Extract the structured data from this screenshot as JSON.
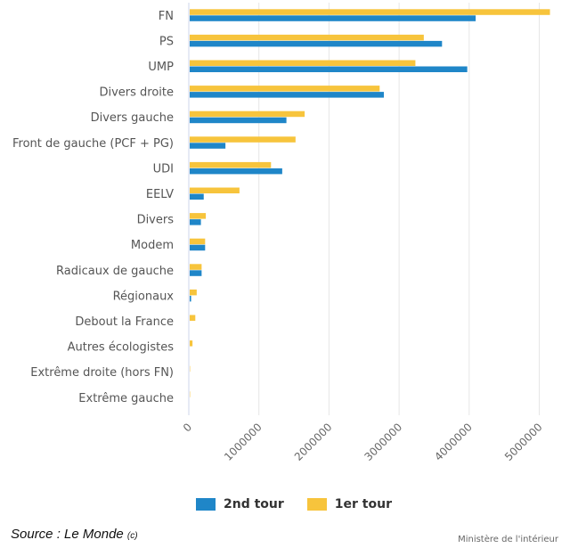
{
  "chart_data": {
    "type": "bar",
    "orientation": "horizontal",
    "categories": [
      "FN",
      "PS",
      "UMP",
      "Divers droite",
      "Divers gauche",
      "Front de gauche (PCF + PG)",
      "UDI",
      "EELV",
      "Divers",
      "Modem",
      "Radicaux de gauche",
      "Régionaux",
      "Debout la France",
      "Autres écologistes",
      "Extrême droite (hors FN)",
      "Extrême gauche"
    ],
    "series": [
      {
        "name": "1er tour",
        "color": "#f7c43c",
        "values": [
          5140000,
          3340000,
          3220000,
          2710000,
          1640000,
          1510000,
          1160000,
          710000,
          230000,
          220000,
          170000,
          100000,
          80000,
          40000,
          5000,
          5000
        ]
      },
      {
        "name": "2nd tour",
        "color": "#1f86c8",
        "values": [
          4080000,
          3600000,
          3960000,
          2770000,
          1380000,
          510000,
          1320000,
          200000,
          160000,
          220000,
          170000,
          20000,
          0,
          0,
          0,
          0
        ]
      }
    ],
    "xlim": [
      0,
      5400000
    ],
    "xticks": [
      "0",
      "1000000",
      "2000000",
      "3000000",
      "4000000",
      "5000000"
    ],
    "xtick_values": [
      0,
      1000000,
      2000000,
      3000000,
      4000000,
      5000000
    ],
    "grid": true,
    "legend_position": "bottom-center",
    "legend_order": [
      "2nd tour",
      "1er tour"
    ]
  },
  "legend": {
    "items": [
      {
        "label": "2nd tour",
        "color": "#1f86c8"
      },
      {
        "label": "1er tour",
        "color": "#f7c43c"
      }
    ]
  },
  "source": {
    "prefix": "Source : ",
    "name": "Le Monde",
    "suffix": "(c)"
  },
  "credit": "Ministère de l'intérieur"
}
